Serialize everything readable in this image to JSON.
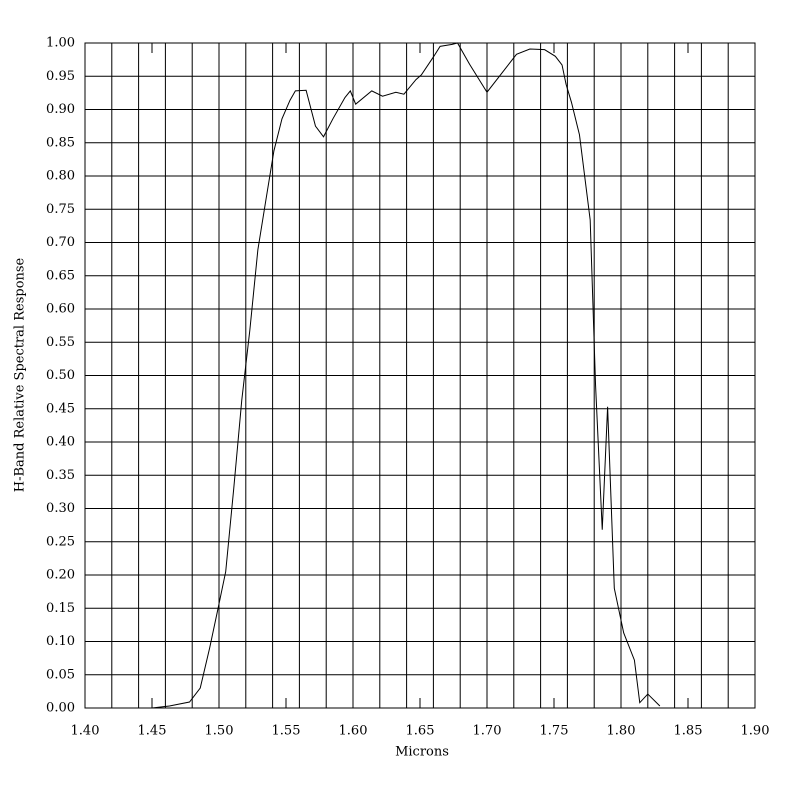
{
  "chart_data": {
    "type": "line",
    "xlabel": "Microns",
    "ylabel": "H-Band Relative Spectral Response",
    "x": [
      1.45,
      1.463,
      1.478,
      1.486,
      1.493,
      1.499,
      1.505,
      1.511,
      1.517,
      1.523,
      1.529,
      1.535,
      1.541,
      1.547,
      1.553,
      1.557,
      1.565,
      1.572,
      1.578,
      1.585,
      1.594,
      1.598,
      1.602,
      1.614,
      1.622,
      1.632,
      1.638,
      1.647,
      1.651,
      1.66,
      1.665,
      1.674,
      1.678,
      1.687,
      1.7,
      1.722,
      1.732,
      1.743,
      1.751,
      1.756,
      1.759,
      1.763,
      1.769,
      1.777,
      1.781,
      1.786,
      1.79,
      1.795,
      1.802,
      1.81,
      1.814,
      1.82,
      1.829
    ],
    "series": [
      {
        "name": "H-Band",
        "color": "#000000",
        "values": [
          0.0,
          0.003,
          0.009,
          0.03,
          0.09,
          0.147,
          0.205,
          0.33,
          0.463,
          0.568,
          0.689,
          0.764,
          0.838,
          0.886,
          0.914,
          0.928,
          0.929,
          0.875,
          0.859,
          0.886,
          0.918,
          0.928,
          0.908,
          0.928,
          0.92,
          0.926,
          0.923,
          0.945,
          0.952,
          0.979,
          0.995,
          0.998,
          1.0,
          0.968,
          0.926,
          0.983,
          0.991,
          0.99,
          0.98,
          0.967,
          0.938,
          0.911,
          0.862,
          0.734,
          0.486,
          0.268,
          0.453,
          0.18,
          0.113,
          0.072,
          0.008,
          0.021,
          0.003
        ]
      }
    ],
    "xlim": [
      1.4,
      1.9
    ],
    "ylim": [
      0,
      1
    ],
    "xticks": [
      {
        "value": 1.4,
        "label": "1.40"
      },
      {
        "value": 1.45,
        "label": "1.45"
      },
      {
        "value": 1.5,
        "label": "1.50"
      },
      {
        "value": 1.55,
        "label": "1.55"
      },
      {
        "value": 1.6,
        "label": "1.60"
      },
      {
        "value": 1.65,
        "label": "1.65"
      },
      {
        "value": 1.7,
        "label": "1.70"
      },
      {
        "value": 1.75,
        "label": "1.75"
      },
      {
        "value": 1.8,
        "label": "1.80"
      },
      {
        "value": 1.85,
        "label": "1.85"
      },
      {
        "value": 1.9,
        "label": "1.90"
      }
    ],
    "yticks": [
      {
        "value": 0,
        "label": "0.00"
      },
      {
        "value": 0.05,
        "label": "0.05"
      },
      {
        "value": 0.1,
        "label": "0.10"
      },
      {
        "value": 0.15,
        "label": "0.15"
      },
      {
        "value": 0.2,
        "label": "0.20"
      },
      {
        "value": 0.25,
        "label": "0.25"
      },
      {
        "value": 0.3,
        "label": "0.30"
      },
      {
        "value": 0.35,
        "label": "0.35"
      },
      {
        "value": 0.4,
        "label": "0.40"
      },
      {
        "value": 0.45,
        "label": "0.45"
      },
      {
        "value": 0.5,
        "label": "0.50"
      },
      {
        "value": 0.55,
        "label": "0.55"
      },
      {
        "value": 0.6,
        "label": "0.60"
      },
      {
        "value": 0.65,
        "label": "0.65"
      },
      {
        "value": 0.7,
        "label": "0.70"
      },
      {
        "value": 0.75,
        "label": "0.75"
      },
      {
        "value": 0.8,
        "label": "0.80"
      },
      {
        "value": 0.85,
        "label": "0.85"
      },
      {
        "value": 0.9,
        "label": "0.90"
      },
      {
        "value": 0.95,
        "label": "0.95"
      },
      {
        "value": 1,
        "label": "1.00"
      }
    ],
    "xgrid": [
      1.42,
      1.44,
      1.46,
      1.48,
      1.5,
      1.52,
      1.54,
      1.56,
      1.58,
      1.6,
      1.62,
      1.64,
      1.66,
      1.68,
      1.7,
      1.72,
      1.74,
      1.76,
      1.78,
      1.8,
      1.82,
      1.84,
      1.86,
      1.88
    ],
    "grid": true
  }
}
